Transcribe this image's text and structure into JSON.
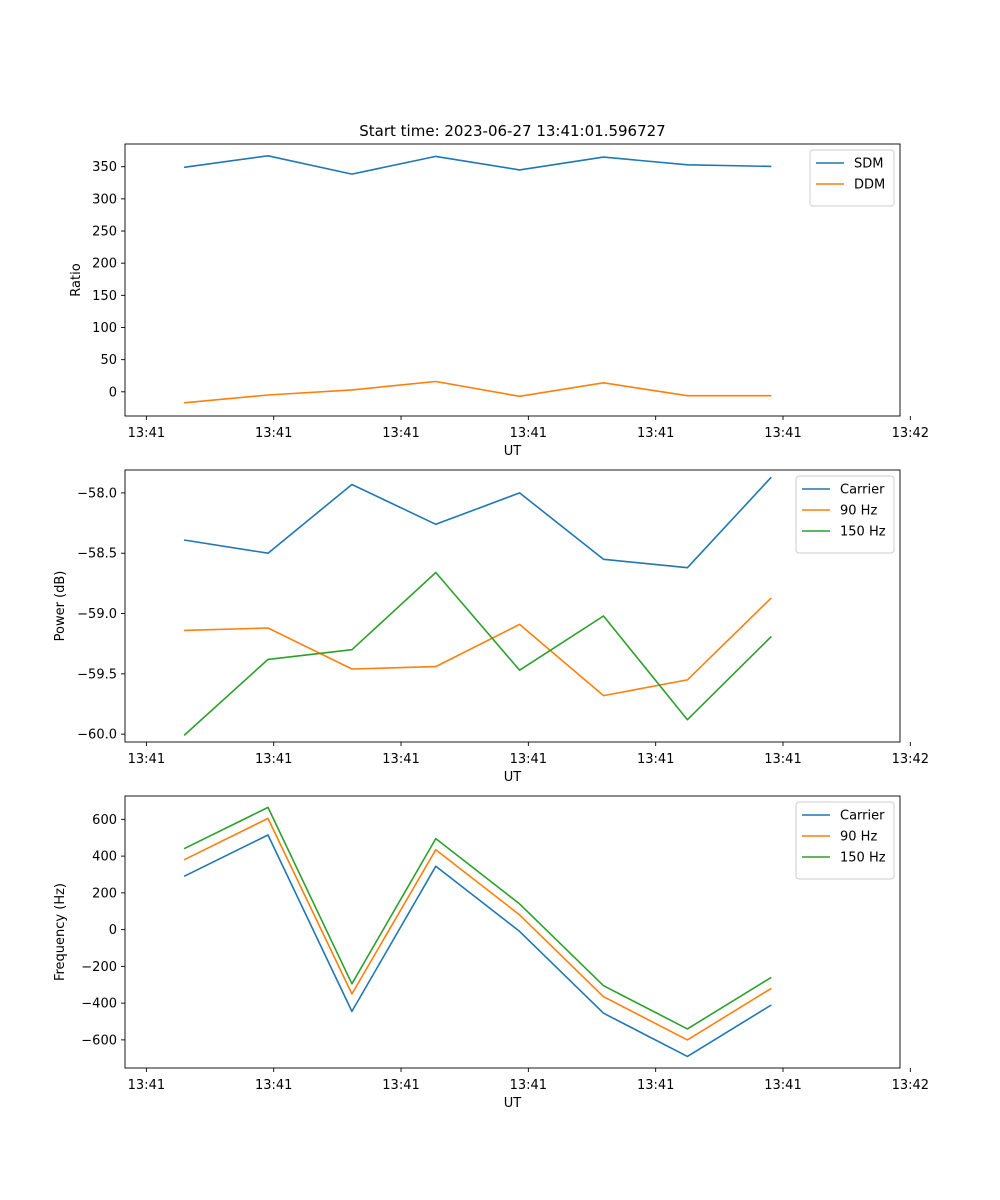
{
  "figure": {
    "title": "Start time: 2023-06-27 13:41:01.596727"
  },
  "chart_data": [
    {
      "type": "line",
      "title": "Start time: 2023-06-27 13:41:01.596727",
      "xlabel": "UT",
      "ylabel": "Ratio",
      "x_tick_labels": [
        "13:41",
        "13:41",
        "13:41",
        "13:41",
        "13:41",
        "13:41",
        "13:42"
      ],
      "x_index": [
        0,
        1,
        2,
        3,
        4,
        5,
        6,
        7
      ],
      "xlim": [
        -0.705,
        8.535
      ],
      "ylim": [
        -37.6,
        385.3
      ],
      "y_ticks": [
        0,
        50,
        100,
        150,
        200,
        250,
        300,
        350
      ],
      "grid": false,
      "legend_position": "top-right",
      "series": [
        {
          "name": "SDM",
          "color": "#1f77b4",
          "values": [
            349,
            367,
            338.5,
            366,
            345,
            365,
            353,
            350.5
          ]
        },
        {
          "name": "DDM",
          "color": "#ff7f0e",
          "values": [
            -17,
            -5,
            3,
            16,
            -7,
            14,
            -6,
            -6
          ]
        }
      ]
    },
    {
      "type": "line",
      "title": "",
      "xlabel": "UT",
      "ylabel": "Power (dB)",
      "x_tick_labels": [
        "13:41",
        "13:41",
        "13:41",
        "13:41",
        "13:41",
        "13:41",
        "13:42"
      ],
      "x_index": [
        0,
        1,
        2,
        3,
        4,
        5,
        6,
        7
      ],
      "xlim": [
        -0.705,
        8.535
      ],
      "ylim": [
        -60.065,
        -57.81
      ],
      "y_ticks": [
        -60.0,
        -59.5,
        -59.0,
        -58.5,
        -58.0
      ],
      "y_tick_labels": [
        "−60.0",
        "−59.5",
        "−59.0",
        "−58.5",
        "−58.0"
      ],
      "grid": false,
      "legend_position": "top-right",
      "series": [
        {
          "name": "Carrier",
          "color": "#1f77b4",
          "values": [
            -58.39,
            -58.5,
            -57.93,
            -58.26,
            -58.0,
            -58.55,
            -58.62,
            -57.87
          ]
        },
        {
          "name": "90 Hz",
          "color": "#ff7f0e",
          "values": [
            -59.14,
            -59.12,
            -59.46,
            -59.44,
            -59.09,
            -59.68,
            -59.55,
            -58.87
          ]
        },
        {
          "name": "150 Hz",
          "color": "#2ca02c",
          "values": [
            -60.01,
            -59.38,
            -59.3,
            -58.66,
            -59.47,
            -59.02,
            -59.88,
            -59.19
          ]
        }
      ]
    },
    {
      "type": "line",
      "title": "",
      "xlabel": "UT",
      "ylabel": "Frequency (Hz)",
      "x_tick_labels": [
        "13:41",
        "13:41",
        "13:41",
        "13:41",
        "13:41",
        "13:41",
        "13:42"
      ],
      "x_index": [
        0,
        1,
        2,
        3,
        4,
        5,
        6,
        7
      ],
      "xlim": [
        -0.705,
        8.535
      ],
      "ylim": [
        -753,
        727
      ],
      "y_ticks": [
        -600,
        -400,
        -200,
        0,
        200,
        400,
        600
      ],
      "y_tick_labels": [
        "−600",
        "−400",
        "−200",
        "0",
        "200",
        "400",
        "600"
      ],
      "grid": false,
      "legend_position": "top-right",
      "series": [
        {
          "name": "Carrier",
          "color": "#1f77b4",
          "values": [
            290,
            515,
            -445,
            345,
            -10,
            -455,
            -690,
            -410
          ]
        },
        {
          "name": "90 Hz",
          "color": "#ff7f0e",
          "values": [
            380,
            605,
            -350,
            435,
            80,
            -365,
            -600,
            -320
          ]
        },
        {
          "name": "150 Hz",
          "color": "#2ca02c",
          "values": [
            440,
            665,
            -295,
            495,
            140,
            -305,
            -540,
            -260
          ]
        }
      ]
    }
  ]
}
